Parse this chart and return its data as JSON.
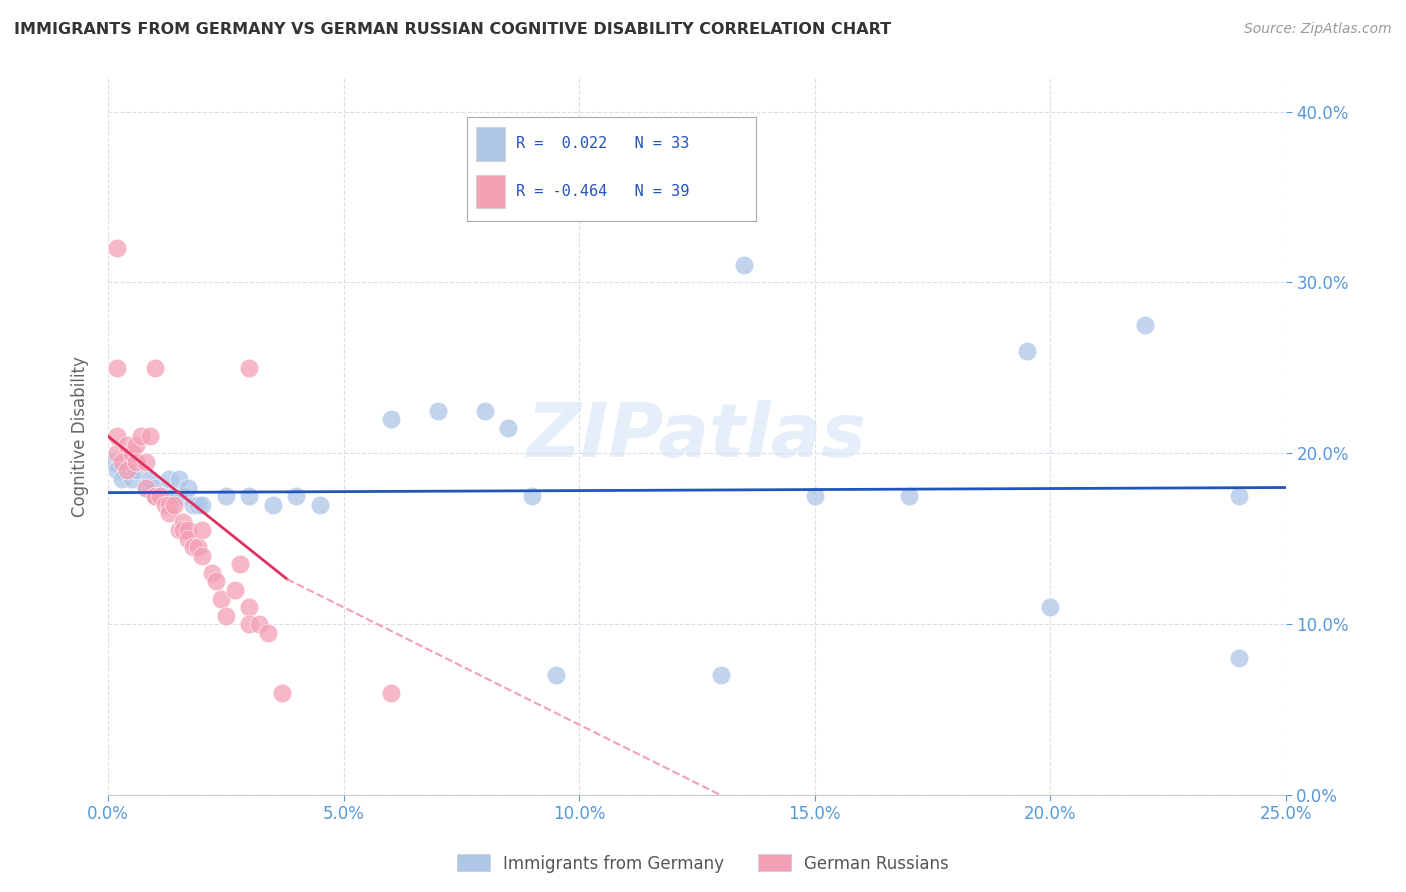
{
  "title": "IMMIGRANTS FROM GERMANY VS GERMAN RUSSIAN COGNITIVE DISABILITY CORRELATION CHART",
  "source": "Source: ZipAtlas.com",
  "ylabel": "Cognitive Disability",
  "xlim": [
    0.0,
    0.25
  ],
  "ylim": [
    0.0,
    0.42
  ],
  "xticks": [
    0.0,
    0.05,
    0.1,
    0.15,
    0.2,
    0.25
  ],
  "yticks": [
    0.0,
    0.1,
    0.2,
    0.3,
    0.4
  ],
  "background_color": "#ffffff",
  "grid_color": "#d0d8e8",
  "blue_color": "#aec6e8",
  "pink_color": "#f4a0b5",
  "blue_line_color": "#2255bb",
  "pink_line_color": "#e03060",
  "pink_line_dashed_color": "#f4a0b5",
  "axis_label_color": "#5599dd",
  "legend_R1": "R =  0.022",
  "legend_N1": "N = 33",
  "legend_R2": "R = -0.464",
  "legend_N2": "N = 39",
  "watermark": "ZIPatlas",
  "blue_scatter": [
    [
      0.001,
      0.195
    ],
    [
      0.002,
      0.19
    ],
    [
      0.003,
      0.185
    ],
    [
      0.005,
      0.185
    ],
    [
      0.006,
      0.19
    ],
    [
      0.008,
      0.18
    ],
    [
      0.009,
      0.185
    ],
    [
      0.01,
      0.18
    ],
    [
      0.011,
      0.175
    ],
    [
      0.012,
      0.175
    ],
    [
      0.013,
      0.185
    ],
    [
      0.014,
      0.175
    ],
    [
      0.015,
      0.185
    ],
    [
      0.016,
      0.175
    ],
    [
      0.017,
      0.18
    ],
    [
      0.018,
      0.17
    ],
    [
      0.019,
      0.17
    ],
    [
      0.02,
      0.17
    ],
    [
      0.025,
      0.175
    ],
    [
      0.03,
      0.175
    ],
    [
      0.035,
      0.17
    ],
    [
      0.04,
      0.175
    ],
    [
      0.045,
      0.17
    ],
    [
      0.06,
      0.22
    ],
    [
      0.07,
      0.225
    ],
    [
      0.08,
      0.225
    ],
    [
      0.085,
      0.215
    ],
    [
      0.09,
      0.175
    ],
    [
      0.095,
      0.07
    ],
    [
      0.13,
      0.07
    ],
    [
      0.15,
      0.175
    ],
    [
      0.17,
      0.175
    ],
    [
      0.2,
      0.11
    ]
  ],
  "blue_scatter_outliers": [
    [
      0.135,
      0.31
    ],
    [
      0.195,
      0.26
    ],
    [
      0.22,
      0.275
    ],
    [
      0.24,
      0.175
    ],
    [
      0.24,
      0.08
    ]
  ],
  "pink_scatter": [
    [
      0.002,
      0.2
    ],
    [
      0.002,
      0.21
    ],
    [
      0.003,
      0.195
    ],
    [
      0.004,
      0.205
    ],
    [
      0.004,
      0.19
    ],
    [
      0.005,
      0.2
    ],
    [
      0.006,
      0.205
    ],
    [
      0.006,
      0.195
    ],
    [
      0.007,
      0.21
    ],
    [
      0.008,
      0.195
    ],
    [
      0.008,
      0.18
    ],
    [
      0.009,
      0.21
    ],
    [
      0.01,
      0.175
    ],
    [
      0.01,
      0.175
    ],
    [
      0.011,
      0.175
    ],
    [
      0.012,
      0.17
    ],
    [
      0.013,
      0.17
    ],
    [
      0.013,
      0.165
    ],
    [
      0.014,
      0.17
    ],
    [
      0.015,
      0.155
    ],
    [
      0.016,
      0.16
    ],
    [
      0.016,
      0.155
    ],
    [
      0.017,
      0.155
    ],
    [
      0.017,
      0.15
    ],
    [
      0.018,
      0.145
    ],
    [
      0.019,
      0.145
    ],
    [
      0.02,
      0.155
    ],
    [
      0.02,
      0.14
    ],
    [
      0.022,
      0.13
    ],
    [
      0.023,
      0.125
    ],
    [
      0.024,
      0.115
    ],
    [
      0.025,
      0.105
    ],
    [
      0.027,
      0.12
    ],
    [
      0.028,
      0.135
    ],
    [
      0.03,
      0.11
    ],
    [
      0.03,
      0.1
    ],
    [
      0.032,
      0.1
    ],
    [
      0.034,
      0.095
    ],
    [
      0.002,
      0.32
    ]
  ],
  "pink_scatter_extra": [
    [
      0.002,
      0.25
    ],
    [
      0.01,
      0.25
    ],
    [
      0.03,
      0.25
    ],
    [
      0.037,
      0.06
    ],
    [
      0.06,
      0.06
    ]
  ]
}
